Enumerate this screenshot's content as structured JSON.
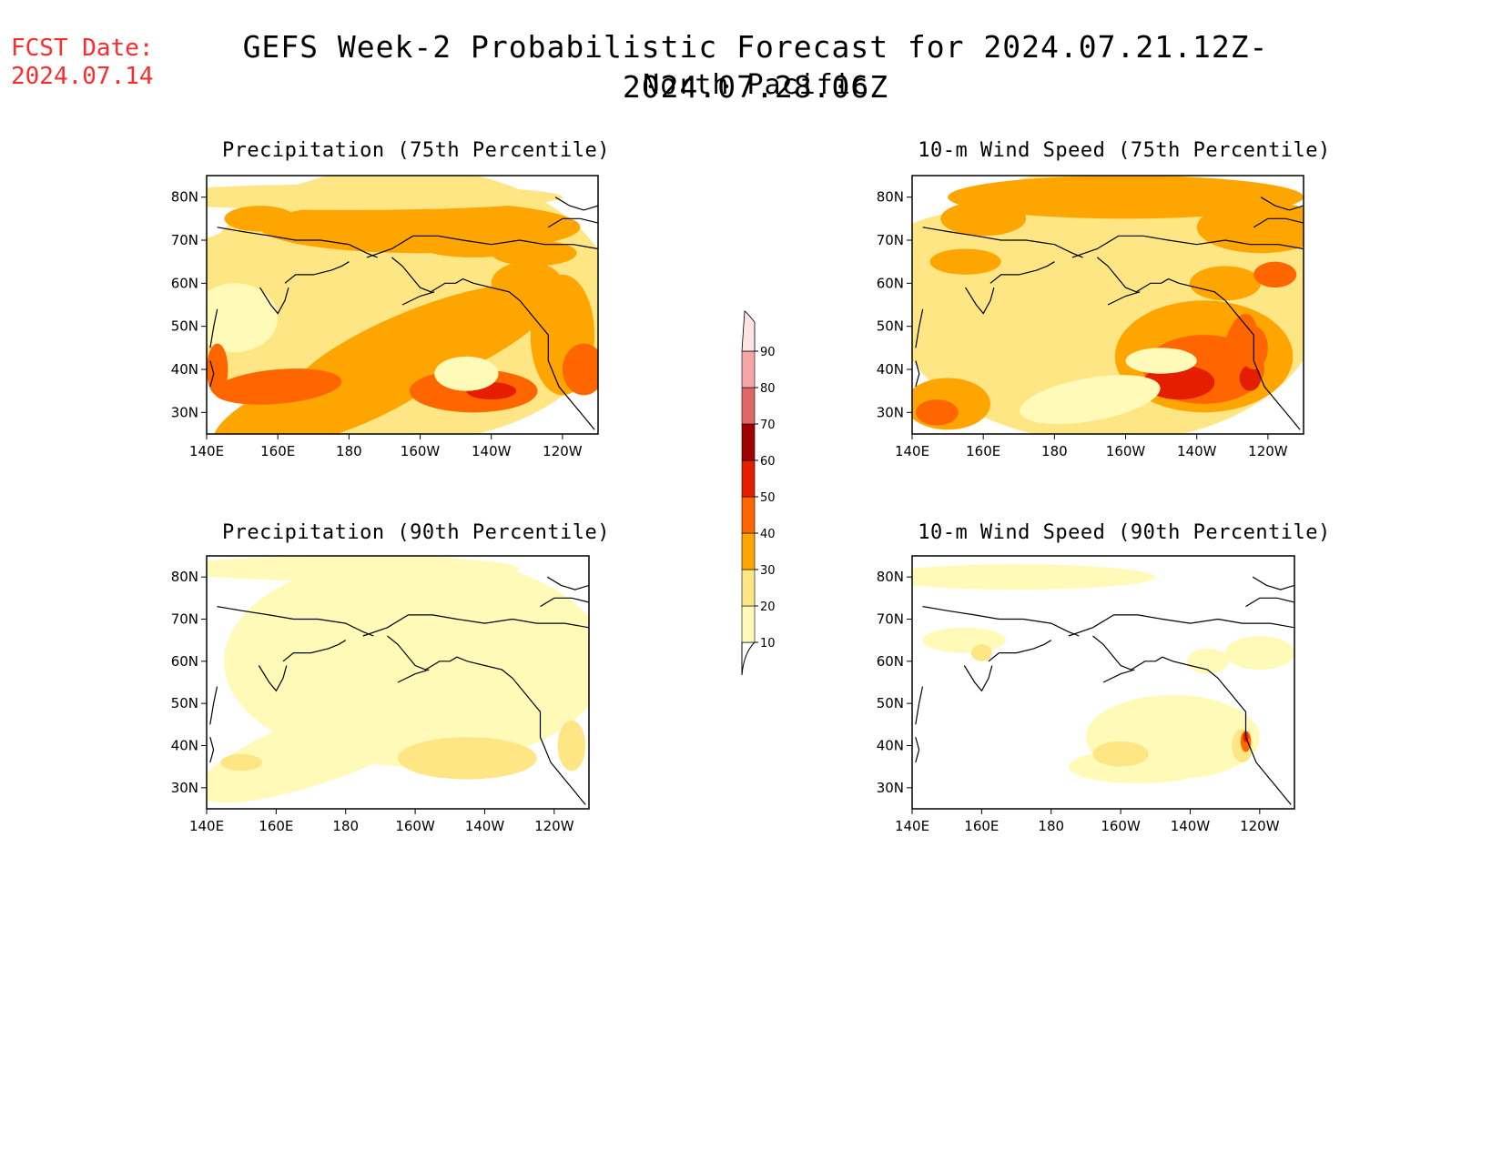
{
  "header": {
    "fcst_label": "FCST Date:",
    "fcst_date": "2024.07.14",
    "title": "GEFS Week-2 Probabilistic Forecast for 2024.07.21.12Z-2024.07.28.06Z",
    "region": "North Pacific"
  },
  "axes": {
    "lat_labels": [
      "80N",
      "70N",
      "60N",
      "50N",
      "40N",
      "30N"
    ],
    "lon_labels": [
      "140E",
      "160E",
      "180",
      "160W",
      "140W",
      "120W"
    ],
    "lat_values": [
      80,
      70,
      60,
      50,
      40,
      30
    ],
    "lon_values": [
      140,
      160,
      180,
      200,
      220,
      240
    ],
    "lat_range": [
      25,
      85
    ],
    "lon_range": [
      140,
      250
    ]
  },
  "panels": [
    {
      "id": "precip75",
      "title": "Precipitation (75th Percentile)"
    },
    {
      "id": "wind75",
      "title": "10-m Wind Speed (75th Percentile)"
    },
    {
      "id": "precip90",
      "title": "Precipitation (90th Percentile)"
    },
    {
      "id": "wind90",
      "title": "10-m Wind Speed (90th Percentile)"
    }
  ],
  "colorbar": {
    "levels": [
      "10",
      "20",
      "30",
      "40",
      "50",
      "60",
      "70",
      "80",
      "90"
    ],
    "colors": [
      "#fffab8",
      "#fee685",
      "#ffa500",
      "#ff6600",
      "#e61e00",
      "#a00000",
      "#e06666",
      "#f4a6a6",
      "#ffe4e4"
    ],
    "below_color": "#ffffff"
  },
  "colors": {
    "fcst_text": "#ff2a2a"
  }
}
